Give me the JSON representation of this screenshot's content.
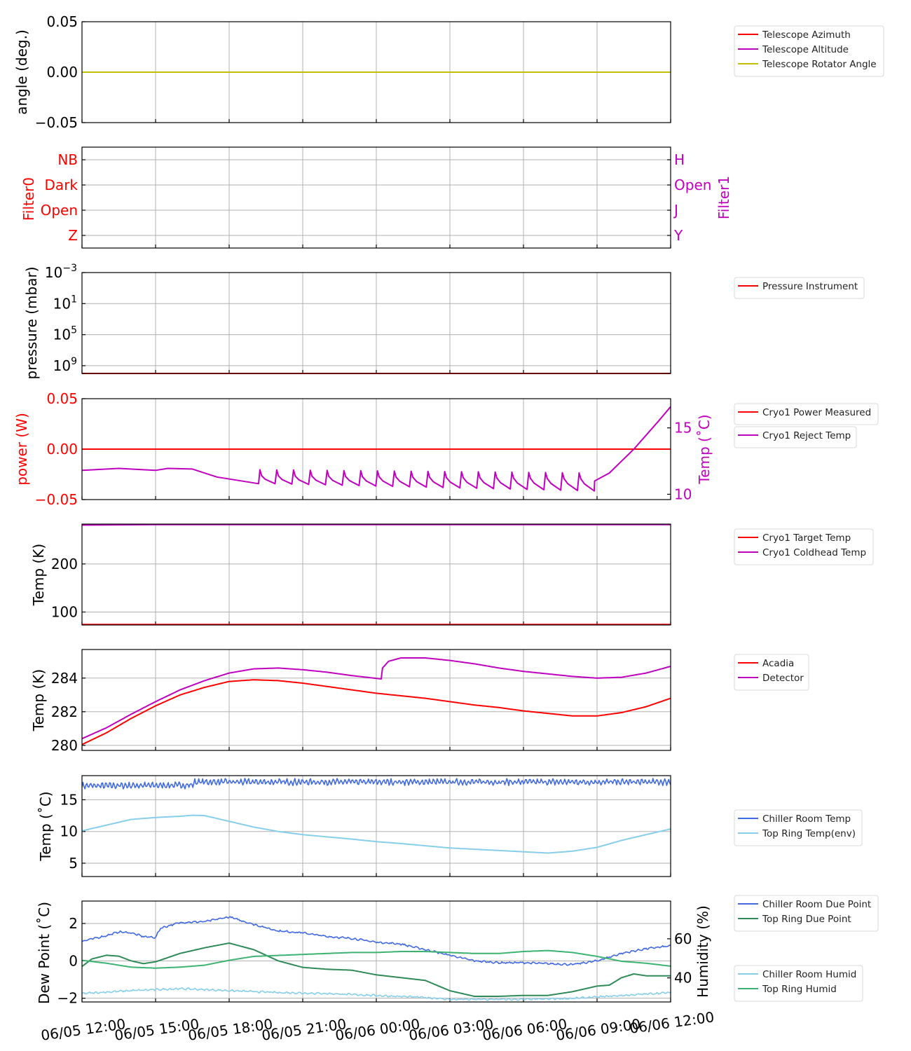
{
  "colors": {
    "red": "#ff0000",
    "magenta": "#bf00bf",
    "olive": "#bfbf00",
    "royalblue": "#4169e1",
    "skyblue": "#87ceeb",
    "seagreen": "#2e8b57",
    "mediumseagreen": "#3cb371",
    "grid": "#b0b0b0"
  },
  "chart_data": [
    {
      "type": "line",
      "id": "telescope",
      "ylabel": "angle (deg.)",
      "ylim": [
        -0.05,
        0.05
      ],
      "yticks": [
        0.05,
        0.0,
        -0.05
      ],
      "ytick_labels": [
        "0.05",
        "0.00",
        "−0.05"
      ],
      "grid": true,
      "legend": [
        "Telescope Azimuth",
        "Telescope Altitude",
        "Telescope Rotator Angle"
      ],
      "legend_colors": [
        "red",
        "magenta",
        "olive"
      ],
      "series": [
        {
          "name": "Telescope Azimuth",
          "color": "red",
          "x": [
            0,
            24
          ],
          "y": [
            0,
            0
          ]
        },
        {
          "name": "Telescope Altitude",
          "color": "magenta",
          "x": [
            0,
            24
          ],
          "y": [
            0,
            0
          ]
        },
        {
          "name": "Telescope Rotator Angle",
          "color": "olive",
          "x": [
            0,
            24
          ],
          "y": [
            0,
            0
          ]
        }
      ]
    },
    {
      "type": "line",
      "id": "filters",
      "ylabel": "Filter0",
      "ylabel_right": "Filter1",
      "ylim": [
        -0.5,
        3.5
      ],
      "yticks": [
        3,
        2,
        1,
        0
      ],
      "ytick_labels": [
        "NB",
        "Dark",
        "Open",
        "Z"
      ],
      "ytick_labels_right": [
        "H",
        "Open",
        "J",
        "Y"
      ],
      "grid": true,
      "series": []
    },
    {
      "type": "line",
      "id": "pressure",
      "ylabel": "pressure (mbar)",
      "yscale": "log",
      "ytick_labels": [
        "10−3",
        "10¹",
        "10⁵",
        "10⁹"
      ],
      "ytick_base": [
        "10",
        "10",
        "10",
        "10"
      ],
      "ytick_exp": [
        "−3",
        "1",
        "5",
        "9"
      ],
      "grid": true,
      "legend": [
        "Pressure Instrument"
      ],
      "legend_colors": [
        "red"
      ],
      "series": [
        {
          "name": "Pressure Instrument",
          "color": "red",
          "x": [
            0,
            24
          ],
          "y": [
            10000000000.0,
            10000000000.0
          ]
        }
      ]
    },
    {
      "type": "line",
      "id": "cryo-power",
      "ylabel": "power (W)",
      "ylabel_right": "Temp (˚C)",
      "ylim": [
        -0.05,
        0.05
      ],
      "ylim_right": [
        9.6,
        17.2
      ],
      "yticks": [
        0.05,
        0.0,
        -0.05
      ],
      "ytick_labels": [
        "0.05",
        "0.00",
        "−0.05"
      ],
      "yticks_right": [
        15,
        10
      ],
      "ytick_labels_right": [
        "15",
        "10"
      ],
      "grid": true,
      "legend": [
        "Cryo1 Power Measured",
        "Cryo1 Reject Temp"
      ],
      "legend_colors": [
        "red",
        "magenta"
      ],
      "series": [
        {
          "name": "Cryo1 Power Measured",
          "color": "red",
          "axis": "left",
          "x": [
            0,
            24
          ],
          "y": [
            0,
            0
          ]
        },
        {
          "name": "Cryo1 Reject Temp",
          "color": "magenta",
          "axis": "right",
          "x": [
            0,
            0.5,
            1.5,
            2.5,
            3.0,
            3.5,
            4.5,
            5.5,
            7.2
          ],
          "y": [
            11.8,
            11.85,
            11.95,
            11.85,
            11.8,
            11.95,
            11.9,
            11.3,
            10.8
          ],
          "sawtooth": {
            "start": 7.2,
            "end": 20.9,
            "count": 20,
            "peak": 11.85,
            "trough_start": 10.8,
            "trough_end": 10.25
          },
          "tail_x": [
            20.9,
            21.5,
            22.5,
            23.5,
            24.0
          ],
          "tail_y": [
            11.0,
            11.6,
            13.4,
            15.5,
            16.6
          ]
        }
      ]
    },
    {
      "type": "line",
      "id": "cryo-temps",
      "ylabel": "Temp (K)",
      "ylim": [
        73,
        283
      ],
      "yticks": [
        200,
        100
      ],
      "ytick_labels": [
        "200",
        "100"
      ],
      "grid": true,
      "legend": [
        "Cryo1 Target Temp",
        "Cryo1 Coldhead Temp"
      ],
      "legend_colors": [
        "red",
        "magenta"
      ],
      "series": [
        {
          "name": "Cryo1 Target Temp",
          "color": "red",
          "x": [
            0,
            24
          ],
          "y": [
            74,
            74
          ]
        },
        {
          "name": "Cryo1 Coldhead Temp",
          "color": "magenta",
          "x": [
            0,
            3,
            12,
            24
          ],
          "y": [
            281,
            282,
            282,
            282
          ]
        }
      ]
    },
    {
      "type": "line",
      "id": "acadia-detector",
      "ylabel": "Temp (K)",
      "ylim": [
        279.7,
        285.7
      ],
      "yticks": [
        284,
        282,
        280
      ],
      "ytick_labels": [
        "284",
        "282",
        "280"
      ],
      "grid": true,
      "legend": [
        "Acadia",
        "Detector"
      ],
      "legend_colors": [
        "red",
        "magenta"
      ],
      "series": [
        {
          "name": "Acadia",
          "color": "red",
          "x": [
            0,
            1,
            2,
            3,
            4,
            5,
            6,
            7,
            8,
            9,
            10,
            11,
            12,
            13,
            14,
            15,
            16,
            17,
            18,
            19,
            20,
            21,
            22,
            23,
            24
          ],
          "y": [
            280.05,
            280.75,
            281.6,
            282.35,
            283.0,
            283.45,
            283.8,
            283.9,
            283.85,
            283.7,
            283.5,
            283.3,
            283.1,
            282.95,
            282.8,
            282.6,
            282.4,
            282.25,
            282.05,
            281.9,
            281.75,
            281.75,
            281.95,
            282.3,
            282.8
          ]
        },
        {
          "name": "Detector",
          "color": "magenta",
          "x": [
            0,
            1,
            2,
            3,
            4,
            5,
            6,
            7,
            8,
            9,
            10,
            11,
            12.2,
            12.25,
            12.5,
            13,
            14,
            15,
            16,
            17,
            18,
            19,
            20,
            21,
            22,
            23,
            24
          ],
          "y": [
            280.4,
            281.05,
            281.85,
            282.6,
            283.3,
            283.85,
            284.3,
            284.55,
            284.6,
            284.5,
            284.35,
            284.15,
            283.95,
            284.6,
            285.0,
            285.2,
            285.2,
            285.05,
            284.85,
            284.6,
            284.4,
            284.25,
            284.1,
            284.0,
            284.05,
            284.3,
            284.7
          ]
        }
      ]
    },
    {
      "type": "line",
      "id": "environment-temp",
      "ylabel": "Temp (˚C)",
      "ylim": [
        2.9,
        18.8
      ],
      "yticks": [
        15,
        10,
        5
      ],
      "ytick_labels": [
        "15",
        "10",
        "5"
      ],
      "grid": true,
      "legend": [
        "Chiller Room Temp",
        "Top Ring Temp(env)"
      ],
      "legend_colors": [
        "royalblue",
        "skyblue"
      ],
      "series": [
        {
          "name": "Chiller Room Temp",
          "color": "royalblue",
          "noisy": true,
          "x": [
            0,
            4.5,
            4.6,
            24
          ],
          "y": [
            17.2,
            17.3,
            17.8,
            17.8
          ]
        },
        {
          "name": "Top Ring Temp(env)",
          "color": "skyblue",
          "x": [
            0,
            1,
            2,
            3,
            4,
            4.5,
            5,
            6,
            7,
            8,
            9,
            10,
            11,
            12,
            13,
            14,
            15,
            16,
            17,
            18,
            19,
            20,
            21,
            22,
            23,
            24
          ],
          "y": [
            10.1,
            11.0,
            11.9,
            12.2,
            12.4,
            12.55,
            12.5,
            11.6,
            10.7,
            10.0,
            9.5,
            9.15,
            8.8,
            8.4,
            8.1,
            7.75,
            7.4,
            7.2,
            7.0,
            6.8,
            6.6,
            6.9,
            7.5,
            8.6,
            9.5,
            10.4
          ]
        }
      ]
    },
    {
      "type": "line",
      "id": "dew-humidity",
      "ylabel": "Dew Point (˚C)",
      "ylabel_right": "Humidity (%)",
      "ylim": [
        -2.2,
        3.2
      ],
      "ylim_right": [
        27.7,
        79.3
      ],
      "yticks": [
        2,
        0,
        -2
      ],
      "ytick_labels": [
        "2",
        "0",
        "−2"
      ],
      "yticks_right": [
        60,
        40
      ],
      "ytick_labels_right": [
        "60",
        "40"
      ],
      "grid": true,
      "legend": [
        "Chiller Room Due Point",
        "Top Ring Due Point"
      ],
      "legend_colors": [
        "royalblue",
        "seagreen"
      ],
      "legend2": [
        "Chiller Room Humid",
        "Top Ring Humid"
      ],
      "legend2_colors": [
        "skyblue",
        "mediumseagreen"
      ],
      "series": [
        {
          "name": "Chiller Room Due Point",
          "color": "royalblue",
          "axis": "left",
          "noisy": true,
          "x": [
            0,
            1,
            1.5,
            2,
            2.5,
            3,
            3.2,
            4,
            5,
            6,
            7,
            8,
            9,
            10,
            11,
            12,
            13,
            14,
            15,
            16,
            17,
            18,
            19,
            20,
            21,
            22,
            23,
            24
          ],
          "y": [
            1.05,
            1.35,
            1.55,
            1.5,
            1.3,
            1.25,
            1.75,
            2.05,
            2.1,
            2.35,
            1.95,
            1.6,
            1.5,
            1.3,
            1.2,
            1.0,
            0.9,
            0.6,
            0.3,
            0.0,
            -0.1,
            -0.1,
            -0.15,
            -0.2,
            0.0,
            0.4,
            0.65,
            0.8
          ]
        },
        {
          "name": "Top Ring Due Point",
          "color": "seagreen",
          "axis": "left",
          "x": [
            0,
            0.4,
            1,
            1.5,
            2,
            2.5,
            3,
            4,
            5,
            6,
            7,
            8,
            9,
            10,
            11,
            12,
            13,
            14,
            15,
            16,
            17,
            18,
            19,
            20,
            21,
            21.5,
            22,
            22.5,
            23,
            24
          ],
          "y": [
            -0.3,
            0.1,
            0.3,
            0.25,
            0.0,
            -0.15,
            -0.05,
            0.4,
            0.7,
            0.95,
            0.6,
            0.0,
            -0.35,
            -0.45,
            -0.5,
            -0.75,
            -0.9,
            -1.05,
            -1.6,
            -1.9,
            -1.9,
            -1.85,
            -1.85,
            -1.65,
            -1.35,
            -1.3,
            -0.9,
            -0.7,
            -0.8,
            -0.8
          ]
        },
        {
          "name": "Chiller Room Humid",
          "color": "skyblue",
          "axis": "right",
          "noisy": true,
          "x": [
            0,
            2,
            4,
            6,
            8,
            10,
            12,
            14,
            15,
            16,
            18,
            20,
            22,
            24
          ],
          "y": [
            32,
            33.5,
            34.5,
            33.5,
            32.5,
            32,
            31,
            30,
            29,
            29,
            29,
            29.5,
            31,
            32.5
          ]
        },
        {
          "name": "Top Ring Humid",
          "color": "mediumseagreen",
          "axis": "right",
          "x": [
            0,
            1,
            2,
            3,
            4,
            5,
            6,
            7,
            8,
            9,
            10,
            11,
            12,
            13,
            14,
            15,
            16,
            17,
            18,
            19,
            20,
            21,
            22,
            23,
            24
          ],
          "y": [
            49,
            47.5,
            45.5,
            45,
            45.5,
            46.5,
            49,
            51,
            51.5,
            52,
            52.5,
            53,
            53,
            53.5,
            53.5,
            53,
            52.5,
            52.5,
            53.5,
            54,
            53,
            51,
            48.5,
            47.5,
            46
          ]
        }
      ]
    }
  ],
  "x_axis": {
    "range_hours": [
      0,
      24
    ],
    "tick_hours": [
      0,
      3,
      6,
      9,
      12,
      15,
      18,
      21,
      24
    ],
    "tick_labels": [
      "06/05 12:00",
      "06/05 15:00",
      "06/05 18:00",
      "06/05 21:00",
      "06/06 00:00",
      "06/06 03:00",
      "06/06 06:00",
      "06/06 09:00",
      "06/06 12:00"
    ]
  }
}
